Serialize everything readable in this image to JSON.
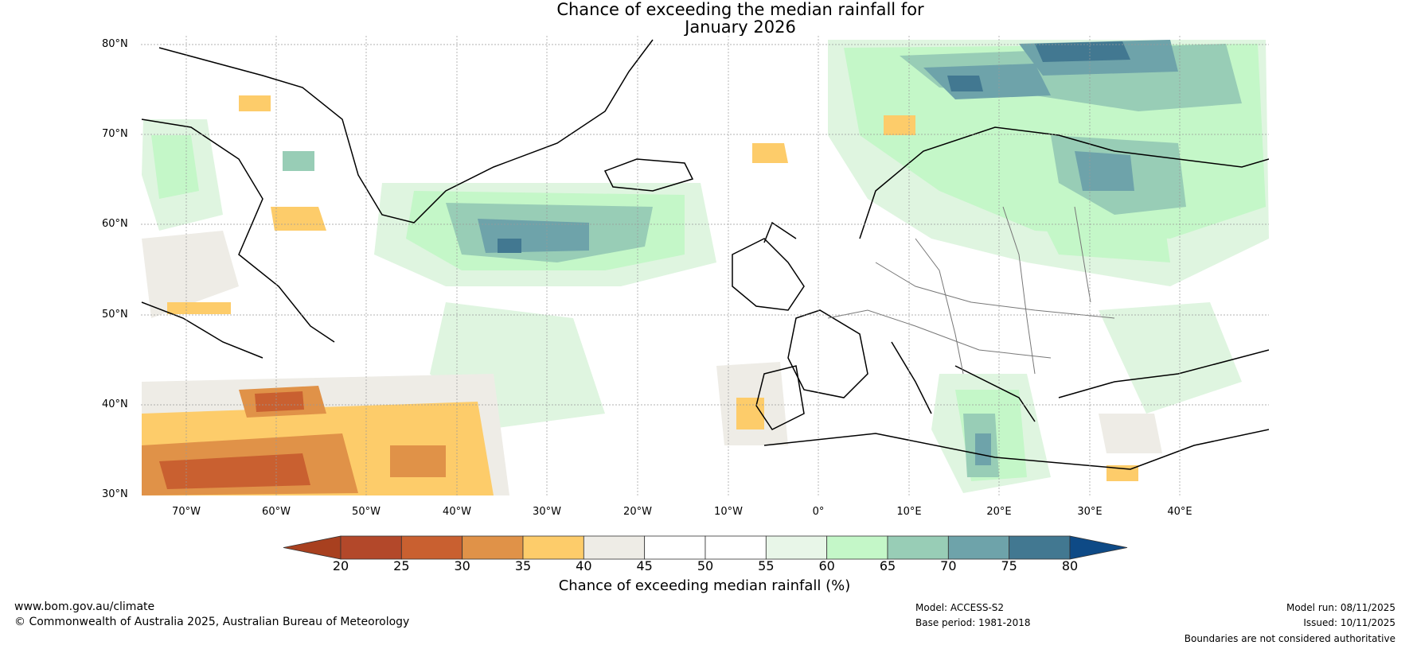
{
  "title_line1": "Chance of exceeding the median rainfall for",
  "title_line2": "January 2026",
  "latitude_labels": [
    "80°N",
    "70°N",
    "60°N",
    "50°N",
    "40°N",
    "30°N"
  ],
  "longitude_labels": [
    "70°W",
    "60°W",
    "50°W",
    "40°W",
    "30°W",
    "20°W",
    "10°W",
    "0°",
    "10°E",
    "20°E",
    "30°E",
    "40°E"
  ],
  "colorbar": {
    "label": "Chance of exceeding median rainfall (%)",
    "ticks": [
      "20",
      "25",
      "30",
      "35",
      "40",
      "45",
      "50",
      "55",
      "60",
      "65",
      "70",
      "75",
      "80"
    ],
    "colors": [
      "#a8401f",
      "#b3482a",
      "#c96030",
      "#e09248",
      "#fdcc6a",
      "#eeece6",
      "#ffffff",
      "#ffffff",
      "#e8f6e8",
      "#c4f7c8",
      "#98cdb6",
      "#6ea3aa",
      "#427891",
      "#0e4a86"
    ]
  },
  "footer": {
    "website": "www.bom.gov.au/climate",
    "copyright": "© Commonwealth of Australia 2025, Australian Bureau of Meteorology",
    "model": "Model: ACCESS-S2",
    "base_period": "Base period: 1981-2018",
    "model_run": "Model run: 08/11/2025",
    "issued": "Issued: 10/11/2025",
    "disclaimer": "Boundaries are not considered authoritative"
  }
}
